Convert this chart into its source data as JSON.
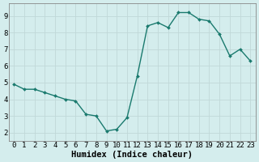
{
  "x": [
    0,
    1,
    2,
    3,
    4,
    5,
    6,
    7,
    8,
    9,
    10,
    11,
    12,
    13,
    14,
    15,
    16,
    17,
    18,
    19,
    20,
    21,
    22,
    23
  ],
  "y": [
    4.9,
    4.6,
    4.6,
    4.4,
    4.2,
    4.0,
    3.9,
    3.1,
    3.0,
    2.1,
    2.2,
    2.9,
    5.4,
    8.4,
    8.6,
    8.3,
    9.2,
    9.2,
    8.8,
    8.7,
    7.9,
    6.6,
    7.0,
    6.3
  ],
  "line_color": "#1a7a6e",
  "marker": "D",
  "markersize": 2.0,
  "linewidth": 1.0,
  "xlabel": "Humidex (Indice chaleur)",
  "xlim": [
    -0.5,
    23.5
  ],
  "ylim": [
    1.5,
    9.75
  ],
  "yticks": [
    2,
    3,
    4,
    5,
    6,
    7,
    8,
    9
  ],
  "xticks": [
    0,
    1,
    2,
    3,
    4,
    5,
    6,
    7,
    8,
    9,
    10,
    11,
    12,
    13,
    14,
    15,
    16,
    17,
    18,
    19,
    20,
    21,
    22,
    23
  ],
  "bg_color": "#d4eded",
  "grid_color": "#c0d8d8",
  "tick_fontsize": 6.5,
  "xlabel_fontsize": 7.5,
  "font_family": "monospace"
}
